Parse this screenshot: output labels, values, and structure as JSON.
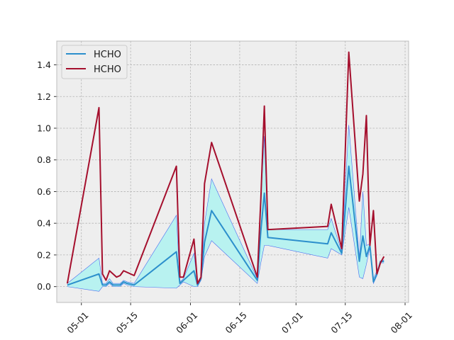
{
  "chart_data": {
    "type": "line",
    "title": "",
    "xlabel": "",
    "ylabel": "",
    "x_tick_labels": [
      "05-01",
      "05-15",
      "06-01",
      "06-15",
      "07-01",
      "07-15",
      "08-01"
    ],
    "x_tick_dates": [
      "2020-05-01",
      "2020-05-15",
      "2020-06-01",
      "2020-06-15",
      "2020-07-01",
      "2020-07-15",
      "2020-08-01"
    ],
    "xlim": [
      "2020-04-24",
      "2020-08-02"
    ],
    "ylim": [
      -0.1,
      1.55
    ],
    "y_ticks": [
      0.0,
      0.2,
      0.4,
      0.6,
      0.8,
      1.0,
      1.2,
      1.4
    ],
    "y_tick_labels": [
      "0.0",
      "0.2",
      "0.4",
      "0.6",
      "0.8",
      "1.0",
      "1.2",
      "1.4"
    ],
    "grid": true,
    "legend": {
      "position": "top-left",
      "entries": [
        "HCHO",
        "HCHO"
      ]
    },
    "colors": {
      "mean": "#2c8fcc",
      "max": "#a50f2d",
      "band_fill": "#b8f2f0",
      "band_edge": "#4a6cf0",
      "plot_bg": "#eeeeee",
      "grid": "#b4b4b4"
    },
    "x": [
      "2020-04-27",
      "2020-05-06",
      "2020-05-07",
      "2020-05-08",
      "2020-05-09",
      "2020-05-10",
      "2020-05-11",
      "2020-05-12",
      "2020-05-13",
      "2020-05-14",
      "2020-05-16",
      "2020-05-28",
      "2020-05-29",
      "2020-05-30",
      "2020-06-02",
      "2020-06-03",
      "2020-06-04",
      "2020-06-05",
      "2020-06-07",
      "2020-06-20",
      "2020-06-21",
      "2020-06-22",
      "2020-06-23",
      "2020-07-10",
      "2020-07-11",
      "2020-07-14",
      "2020-07-16",
      "2020-07-19",
      "2020-07-20",
      "2020-07-21",
      "2020-07-22",
      "2020-07-23",
      "2020-07-24",
      "2020-07-25",
      "2020-07-26"
    ],
    "series": [
      {
        "name": "HCHO",
        "values": [
          0.01,
          0.08,
          0.01,
          0.01,
          0.03,
          0.01,
          0.01,
          0.01,
          0.03,
          0.02,
          0.01,
          0.22,
          0.02,
          0.04,
          0.1,
          0.01,
          0.05,
          0.28,
          0.48,
          0.04,
          0.35,
          0.59,
          0.31,
          0.27,
          0.34,
          0.21,
          0.76,
          0.16,
          0.32,
          0.19,
          0.26,
          0.03,
          0.08,
          0.16,
          0.16
        ]
      },
      {
        "name": "HCHO",
        "values": [
          0.02,
          1.13,
          0.08,
          0.04,
          0.1,
          0.08,
          0.06,
          0.07,
          0.1,
          0.09,
          0.07,
          0.76,
          0.06,
          0.06,
          0.3,
          0.02,
          0.06,
          0.65,
          0.91,
          0.06,
          0.55,
          1.14,
          0.36,
          0.38,
          0.52,
          0.24,
          1.48,
          0.54,
          0.71,
          1.08,
          0.26,
          0.48,
          0.08,
          0.15,
          0.19
        ]
      }
    ],
    "band": {
      "upper": [
        0.02,
        0.18,
        0.02,
        0.02,
        0.05,
        0.02,
        0.02,
        0.02,
        0.04,
        0.03,
        0.02,
        0.45,
        0.03,
        0.05,
        0.21,
        0.02,
        0.06,
        0.4,
        0.68,
        0.05,
        0.55,
        0.95,
        0.36,
        0.36,
        0.43,
        0.22,
        1.02,
        0.18,
        0.6,
        0.26,
        0.27,
        0.05,
        0.1,
        0.15,
        0.17
      ],
      "lower": [
        0.0,
        -0.03,
        0.0,
        0.0,
        0.02,
        0.0,
        0.0,
        0.0,
        0.02,
        0.01,
        0.0,
        -0.01,
        0.01,
        0.03,
        0.0,
        0.0,
        0.04,
        0.19,
        0.29,
        0.02,
        0.15,
        0.26,
        0.26,
        0.18,
        0.24,
        0.2,
        0.5,
        0.06,
        0.05,
        0.14,
        0.25,
        0.02,
        0.07,
        0.15,
        0.15
      ]
    }
  }
}
